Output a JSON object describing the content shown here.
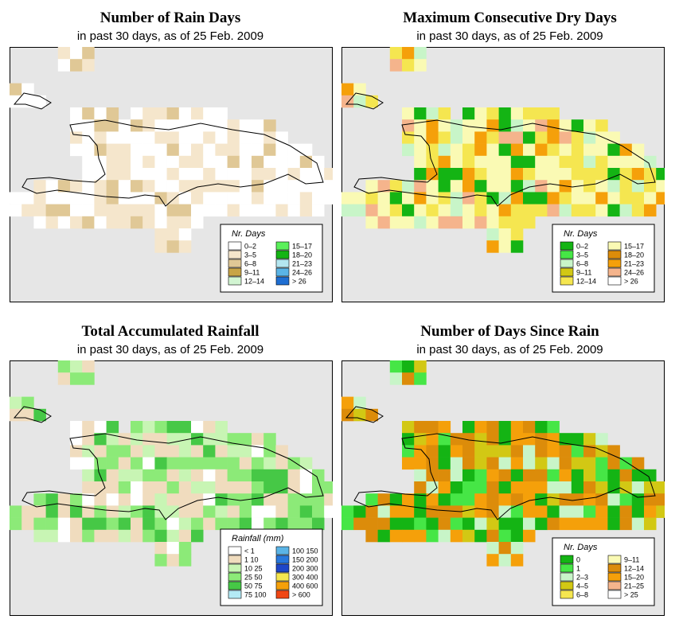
{
  "colors": {
    "sea": "#e6e6e6",
    "outline": "#000000"
  },
  "chart_data": [
    {
      "type": "heatmap",
      "title": "Number of Rain Days",
      "subtitle": "in past 30 days, as of  25 Feb. 2009",
      "legend_title": "Nr. Days",
      "legend": [
        {
          "label": "0–2",
          "color": "#ffffff"
        },
        {
          "label": "3–5",
          "color": "#f5e6cc"
        },
        {
          "label": "6–8",
          "color": "#e0c896"
        },
        {
          "label": "9–11",
          "color": "#c8a446"
        },
        {
          "label": "12–14",
          "color": "#d2f5d2"
        },
        {
          "label": "15–17",
          "color": "#5af05a"
        },
        {
          "label": "18–20",
          "color": "#14b414"
        },
        {
          "label": "21–23",
          "color": "#b4e6f0"
        },
        {
          "label": "24–26",
          "color": "#5ab4e6"
        },
        {
          "label": "> 26",
          "color": "#1e6ed2"
        }
      ]
    },
    {
      "type": "heatmap",
      "title": "Maximum Consecutive Dry Days",
      "subtitle": "in past 30 days, as of  25 Feb. 2009",
      "legend_title": "Nr. Days",
      "legend": [
        {
          "label": "0–2",
          "color": "#14b414"
        },
        {
          "label": "3–5",
          "color": "#46e646"
        },
        {
          "label": "6–8",
          "color": "#c8f5c8"
        },
        {
          "label": "9–11",
          "color": "#d2c814"
        },
        {
          "label": "12–14",
          "color": "#f5e650"
        },
        {
          "label": "15–17",
          "color": "#fafab4"
        },
        {
          "label": "18–20",
          "color": "#dc8c0a"
        },
        {
          "label": "21–23",
          "color": "#f5a00a"
        },
        {
          "label": "24–26",
          "color": "#f5b48c"
        },
        {
          "label": "> 26",
          "color": "#ffffff"
        }
      ]
    },
    {
      "type": "heatmap",
      "title": "Total Accumulated Rainfall",
      "subtitle": "in past 30 days, as of  25 Feb. 2009",
      "legend_title": "Rainfall (mm)",
      "legend": [
        {
          "label": "< 1",
          "color": "#ffffff"
        },
        {
          "label": "1   10",
          "color": "#f0dcbe"
        },
        {
          "label": "10   25",
          "color": "#c8f5b4"
        },
        {
          "label": "25   50",
          "color": "#8cea78"
        },
        {
          "label": "50   75",
          "color": "#46c846"
        },
        {
          "label": "75  100",
          "color": "#b4eaf5"
        },
        {
          "label": "100  150",
          "color": "#5ab4e6"
        },
        {
          "label": "150  200",
          "color": "#2878dc"
        },
        {
          "label": "200  300",
          "color": "#1e46c8"
        },
        {
          "label": "300  400",
          "color": "#f5e650"
        },
        {
          "label": "400  600",
          "color": "#f5a00a"
        },
        {
          "label": "> 600",
          "color": "#f04614"
        }
      ]
    },
    {
      "type": "heatmap",
      "title": "Number of Days Since Rain",
      "subtitle": "in past 30 days, as of  25 Feb. 2009",
      "legend_title": "Nr. Days",
      "legend": [
        {
          "label": "0",
          "color": "#14b414"
        },
        {
          "label": "1",
          "color": "#46e646"
        },
        {
          "label": "2–3",
          "color": "#c8f5c8"
        },
        {
          "label": "4–5",
          "color": "#d2c814"
        },
        {
          "label": "6–8",
          "color": "#f5e650"
        },
        {
          "label": "9–11",
          "color": "#fafab4"
        },
        {
          "label": "12–14",
          "color": "#dc8c0a"
        },
        {
          "label": "15–20",
          "color": "#f5a00a"
        },
        {
          "label": "21–25",
          "color": "#f5b48c"
        },
        {
          "label": "> 25",
          "color": "#ffffff"
        }
      ]
    }
  ]
}
